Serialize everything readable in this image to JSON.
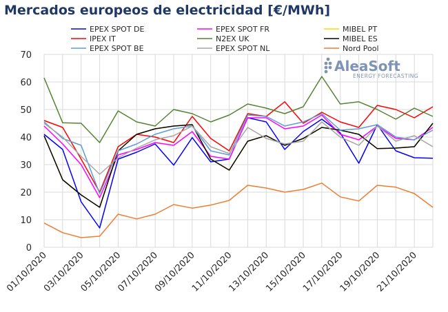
{
  "title": "Mercados europeos de electricidad [€/MWh]",
  "logo": {
    "name": "AleaSoft",
    "tagline": "ENERGY FORECASTING",
    "color": "#7f93b5"
  },
  "chart_data": {
    "type": "line",
    "title": "Mercados europeos de electricidad [€/MWh]",
    "xlabel": "",
    "ylabel": "",
    "ylim": [
      0,
      70
    ],
    "yticks": [
      0,
      10,
      20,
      30,
      40,
      50,
      60,
      70
    ],
    "grid": true,
    "legend_position": "top",
    "x": [
      "01/10/2020",
      "02/10/2020",
      "03/10/2020",
      "04/10/2020",
      "05/10/2020",
      "06/10/2020",
      "07/10/2020",
      "08/10/2020",
      "09/10/2020",
      "10/10/2020",
      "11/10/2020",
      "12/10/2020",
      "13/10/2020",
      "14/10/2020",
      "15/10/2020",
      "16/10/2020",
      "17/10/2020",
      "18/10/2020",
      "19/10/2020",
      "20/10/2020",
      "21/10/2020",
      "22/10/2020"
    ],
    "xticklabels": [
      "01/10/2020",
      "03/10/2020",
      "05/10/2020",
      "07/10/2020",
      "09/10/2020",
      "11/10/2020",
      "13/10/2020",
      "15/10/2020",
      "17/10/2020",
      "19/10/2020",
      "21/10/2020"
    ],
    "series": [
      {
        "name": "EPEX SPOT DE",
        "color": "#0000ff",
        "values": [
          41.0,
          35.5,
          16.5,
          7.0,
          32.0,
          34.5,
          37.5,
          29.8,
          39.8,
          31.0,
          32.0,
          47.0,
          45.5,
          35.5,
          42.0,
          46.5,
          41.5,
          30.5,
          44.5,
          35.0,
          32.5,
          32.3
        ]
      },
      {
        "name": "EPEX SPOT FR",
        "color": "#ff00ff",
        "values": [
          44.0,
          37.5,
          30.0,
          18.0,
          33.5,
          35.5,
          38.0,
          37.0,
          42.0,
          33.0,
          32.0,
          47.0,
          47.0,
          43.0,
          44.0,
          48.0,
          41.0,
          39.0,
          44.0,
          39.5,
          39.0,
          43.5
        ]
      },
      {
        "name": "MIBEL PT",
        "color": "#ffd700",
        "values": [
          40.5,
          24.5,
          19.0,
          14.5,
          35.0,
          41.0,
          43.0,
          44.0,
          44.5,
          32.0,
          28.0,
          38.5,
          40.5,
          37.0,
          39.5,
          43.5,
          42.5,
          41.0,
          35.8,
          36.0,
          36.5,
          45.0
        ]
      },
      {
        "name": "IPEX IT",
        "color": "#ff0000",
        "values": [
          46.0,
          43.5,
          32.0,
          20.0,
          36.5,
          41.0,
          40.0,
          38.0,
          47.5,
          39.5,
          35.0,
          48.5,
          47.5,
          52.8,
          45.0,
          49.0,
          45.5,
          43.5,
          51.5,
          50.0,
          47.0,
          51.0
        ]
      },
      {
        "name": "N2EX UK",
        "color": "#548235",
        "values": [
          61.5,
          45.2,
          45.0,
          38.0,
          49.5,
          45.5,
          44.0,
          50.0,
          48.5,
          45.5,
          48.0,
          52.0,
          50.5,
          48.5,
          51.0,
          62.0,
          52.0,
          52.8,
          50.0,
          46.5,
          50.5,
          47.5
        ]
      },
      {
        "name": "MIBEL ES",
        "color": "#000000",
        "values": [
          40.5,
          24.5,
          19.0,
          14.5,
          35.0,
          41.0,
          43.0,
          44.0,
          44.5,
          32.0,
          28.0,
          38.5,
          40.5,
          37.0,
          39.5,
          43.5,
          42.5,
          41.0,
          35.8,
          36.0,
          36.5,
          45.0
        ]
      },
      {
        "name": "EPEX SPOT BE",
        "color": "#5b9bd5",
        "values": [
          45.5,
          39.5,
          37.0,
          19.5,
          35.0,
          37.5,
          41.0,
          43.0,
          44.0,
          35.0,
          33.5,
          48.0,
          47.5,
          44.0,
          45.5,
          48.5,
          42.5,
          43.0,
          44.5,
          40.0,
          39.0,
          42.5
        ]
      },
      {
        "name": "EPEX SPOT NL",
        "color": "#a5a5a5",
        "values": [
          45.0,
          40.0,
          33.0,
          26.5,
          32.5,
          36.0,
          39.0,
          40.5,
          44.0,
          36.5,
          34.0,
          43.5,
          39.5,
          37.5,
          38.5,
          45.5,
          40.0,
          37.0,
          44.0,
          38.5,
          40.5,
          36.5
        ]
      },
      {
        "name": "Nord Pool",
        "color": "#ed7d31",
        "values": [
          8.8,
          5.3,
          3.5,
          4.0,
          12.0,
          10.3,
          12.0,
          15.5,
          14.2,
          15.3,
          17.0,
          22.5,
          21.5,
          20.0,
          21.0,
          23.3,
          18.3,
          16.8,
          22.5,
          21.8,
          19.5,
          14.5
        ]
      }
    ]
  }
}
